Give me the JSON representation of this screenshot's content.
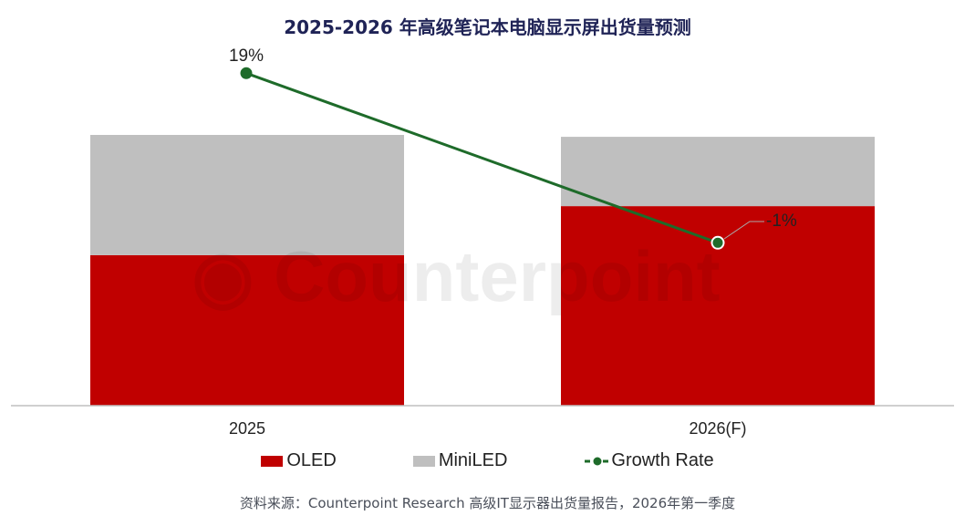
{
  "title": "2025-2026 年高级笔记本电脑显示屏出货量预测",
  "source": "资料来源：Counterpoint Research 高级IT显示器出货量报告，2026年第一季度",
  "watermark": "Counterpoint",
  "colors": {
    "OLED": "#c00000",
    "MiniLED": "#bfbfbf",
    "Growth Rate": "#1e6b2a"
  },
  "chart_data": {
    "type": "bar",
    "stacked": true,
    "categories": [
      "2025",
      "2026(F)"
    ],
    "series": [
      {
        "name": "OLED",
        "type": "bar",
        "values": [
          55.6,
          73.7
        ]
      },
      {
        "name": "MiniLED",
        "type": "bar",
        "values": [
          44.4,
          25.6
        ]
      },
      {
        "name": "Growth Rate",
        "type": "line",
        "axis": "secondary",
        "values": [
          19,
          -1
        ],
        "labels": [
          "19%",
          "-1%"
        ]
      }
    ],
    "y_axis_shown": false,
    "grid": false,
    "legend": "bottom",
    "title": "2025-2026 年高级笔记本电脑显示屏出货量预测"
  }
}
